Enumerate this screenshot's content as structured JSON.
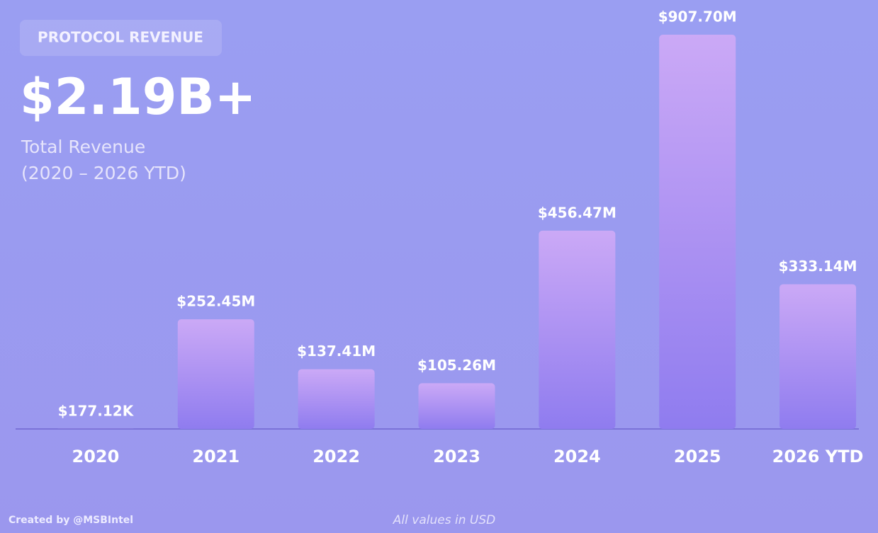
{
  "chart_data": {
    "type": "bar",
    "badge": "PROTOCOL REVENUE",
    "title": "$2.19B+",
    "subtitle": "Total Revenue",
    "subtitle_range": "(2020 – 2026 YTD)",
    "categories": [
      "2020",
      "2021",
      "2022",
      "2023",
      "2024",
      "2025",
      "2026 YTD"
    ],
    "values": [
      177120,
      252450000,
      137410000,
      105260000,
      456470000,
      907700000,
      333140000
    ],
    "value_labels": [
      "$177.12K",
      "$252.45M",
      "$137.41M",
      "$105.26M",
      "$456.47M",
      "$907.70M",
      "$333.14M"
    ],
    "credit": "Created by @MSBIntel",
    "note": "All values in USD"
  }
}
